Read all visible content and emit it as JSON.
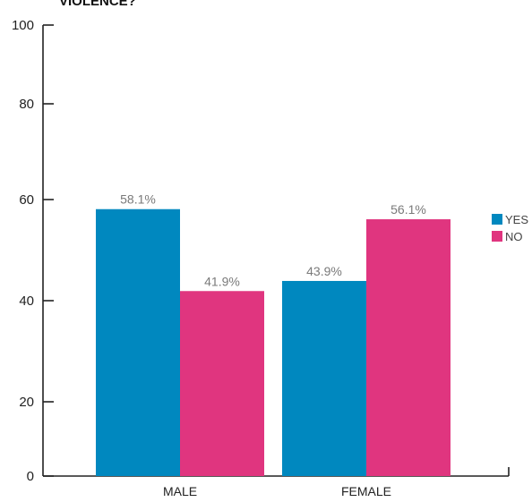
{
  "chart_data": {
    "type": "bar",
    "title": "VIOLENCE?",
    "categories": [
      "MALE",
      "FEMALE"
    ],
    "series": [
      {
        "name": "YES",
        "color": "#0088BF",
        "values": [
          58.1,
          43.9
        ],
        "labels": [
          "58.1%",
          "43.9%"
        ]
      },
      {
        "name": "NO",
        "color": "#E0357F",
        "values": [
          41.9,
          56.1
        ],
        "labels": [
          "41.9%",
          "56.1%"
        ]
      }
    ],
    "yticks": [
      "0",
      "20",
      "40",
      "60",
      "80",
      "100"
    ],
    "ylim": [
      0,
      100
    ],
    "legend_position": "right",
    "grid": false
  }
}
